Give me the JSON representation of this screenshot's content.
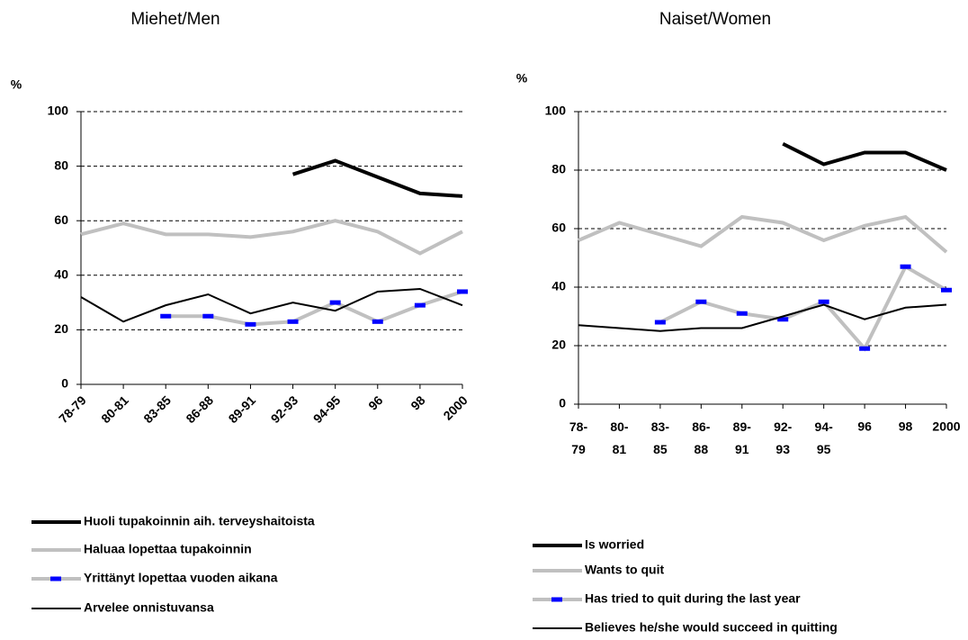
{
  "chart_data": [
    {
      "type": "line",
      "title": "Miehet/Men",
      "ylabel": "%",
      "categories": [
        "78-79",
        "80-81",
        "83-85",
        "86-88",
        "89-91",
        "92-93",
        "94-95",
        "96",
        "98",
        "2000"
      ],
      "ylim": [
        0,
        100
      ],
      "yticks": [
        0,
        20,
        40,
        60,
        80,
        100
      ],
      "grid": true,
      "series": [
        {
          "name": "Huoli tupakoinnin aih. terveyshaitoista",
          "color": "#000000",
          "line_width": 4,
          "values": [
            null,
            null,
            null,
            null,
            null,
            77,
            82,
            76,
            70,
            69
          ]
        },
        {
          "name": "Haluaa lopettaa tupakoinnin",
          "color": "#c0c0c0",
          "line_width": 4,
          "values": [
            55,
            59,
            55,
            55,
            54,
            56,
            60,
            56,
            48,
            56
          ]
        },
        {
          "name": "Yrittänyt lopettaa vuoden aikana",
          "color": "#c0c0c0",
          "marker_color": "#0000ff",
          "line_width": 4,
          "values": [
            null,
            null,
            25,
            25,
            22,
            23,
            30,
            23,
            29,
            34
          ]
        },
        {
          "name": "Arvelee onnistuvansa",
          "color": "#000000",
          "line_width": 2,
          "values": [
            32,
            23,
            29,
            33,
            26,
            30,
            27,
            34,
            35,
            29
          ]
        }
      ]
    },
    {
      "type": "line",
      "title": "Naiset/Women",
      "ylabel": "%",
      "categories": [
        "78-79",
        "80-81",
        "83-85",
        "86-88",
        "89-91",
        "92-93",
        "94-95",
        "96",
        "98",
        "2000"
      ],
      "ylim": [
        0,
        100
      ],
      "yticks": [
        0,
        20,
        40,
        60,
        80,
        100
      ],
      "grid": true,
      "series": [
        {
          "name": "Is worried",
          "color": "#000000",
          "line_width": 4,
          "values": [
            null,
            null,
            null,
            null,
            null,
            89,
            82,
            86,
            86,
            80
          ]
        },
        {
          "name": "Wants to quit",
          "color": "#c0c0c0",
          "line_width": 4,
          "values": [
            56,
            62,
            58,
            54,
            64,
            62,
            56,
            61,
            64,
            52
          ]
        },
        {
          "name": "Has tried to quit during the last year",
          "color": "#c0c0c0",
          "marker_color": "#0000ff",
          "line_width": 4,
          "values": [
            null,
            null,
            28,
            35,
            31,
            29,
            35,
            19,
            47,
            39
          ]
        },
        {
          "name": "Believes he/she would succeed in quitting",
          "color": "#000000",
          "line_width": 2,
          "values": [
            27,
            26,
            25,
            26,
            26,
            30,
            34,
            29,
            33,
            34
          ]
        }
      ]
    }
  ]
}
